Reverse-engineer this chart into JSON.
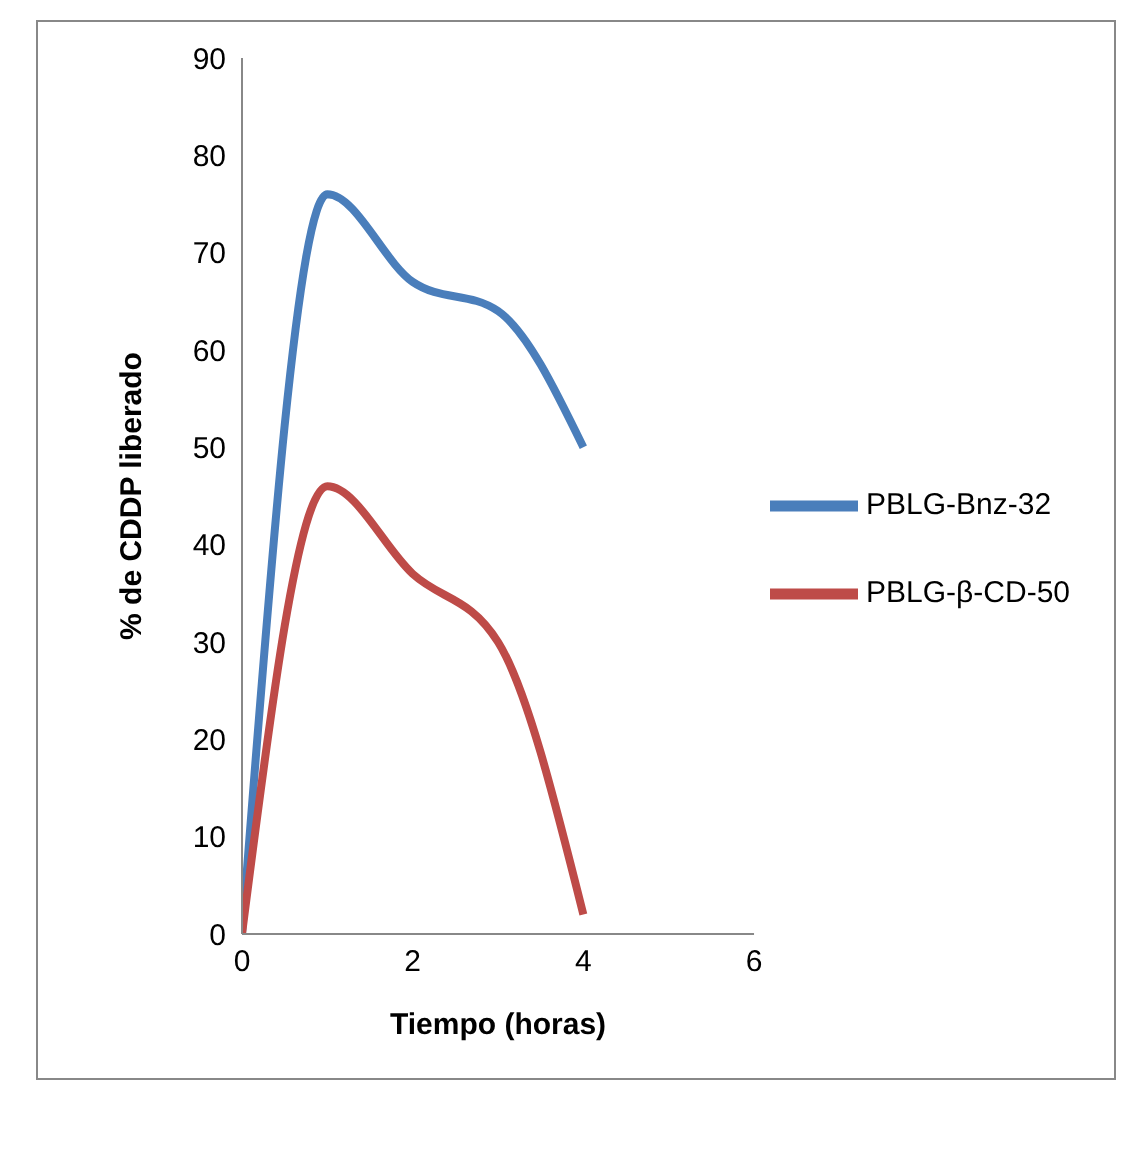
{
  "chart_data": {
    "type": "line",
    "xlabel": "Tiempo (horas)",
    "ylabel": "% de CDDP liberado",
    "x": [
      0,
      1,
      2,
      3,
      4
    ],
    "xlim": [
      0,
      6
    ],
    "xticks": [
      0,
      2,
      4,
      6
    ],
    "ylim": [
      0,
      90
    ],
    "yticks": [
      0,
      10,
      20,
      30,
      40,
      50,
      60,
      70,
      80,
      90
    ],
    "grid": false,
    "legend": "right",
    "marker": "none",
    "series": [
      {
        "name": "PBLG-Bnz-32",
        "color": "#4a7ebb",
        "values": [
          0,
          76,
          67,
          64,
          50
        ]
      },
      {
        "name": "PBLG-β-CD-50",
        "color": "#be4b48",
        "values": [
          0,
          46,
          37,
          30,
          2
        ]
      }
    ]
  }
}
